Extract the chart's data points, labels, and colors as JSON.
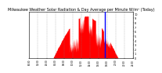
{
  "title": "Milwaukee Weather Solar Radiation & Day Average per Minute W/m² (Today)",
  "title_fontsize": 3.5,
  "bg_color": "#ffffff",
  "plot_bg_color": "#ffffff",
  "grid_color": "#888888",
  "x_min": 0,
  "x_max": 1440,
  "y_min": 0,
  "y_max": 1050,
  "y_ticks": [
    0,
    100,
    200,
    300,
    400,
    500,
    600,
    700,
    800,
    900,
    1000
  ],
  "y_tick_labels": [
    "0",
    "1",
    "2",
    "3",
    "4",
    "5",
    "6",
    "7",
    "8",
    "9",
    "10"
  ],
  "area_color": "#ff0000",
  "avg_color": "#0000ff",
  "current_minute": 1050,
  "sunrise": 330,
  "sunset": 1230,
  "peak_value": 950
}
